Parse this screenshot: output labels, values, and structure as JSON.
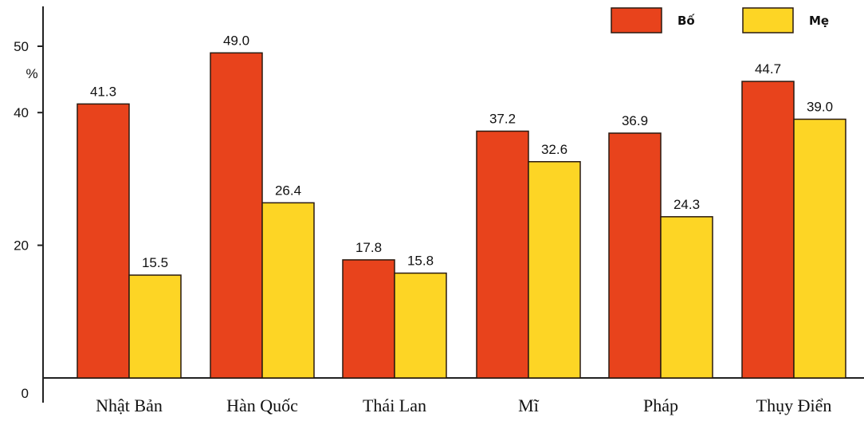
{
  "chart_data": {
    "type": "bar",
    "categories": [
      "Nhật Bản",
      "Hàn Quốc",
      "Thái Lan",
      "Mĩ",
      "Pháp",
      "Thụy Điển"
    ],
    "series": [
      {
        "name": "Bố",
        "values": [
          41.3,
          49.0,
          17.8,
          37.2,
          36.9,
          44.7
        ],
        "labels": [
          "41.3",
          "49.0",
          "17.8",
          "37.2",
          "36.9",
          "44.7"
        ],
        "color": "#e8431c"
      },
      {
        "name": "Mẹ",
        "values": [
          15.5,
          26.4,
          15.8,
          32.6,
          24.3,
          39.0
        ],
        "labels": [
          "15.5",
          "26.4",
          "15.8",
          "32.6",
          "24.3",
          "39.0"
        ],
        "color": "#fdd525"
      }
    ],
    "y_ticks": [
      "0",
      "20",
      "40",
      "50"
    ],
    "y_tick_values": [
      0,
      20,
      40,
      50
    ],
    "ylabel": "%",
    "ylim": [
      0,
      50
    ],
    "grid": false,
    "legend_position": "top-right",
    "axis_color": "#222222"
  }
}
